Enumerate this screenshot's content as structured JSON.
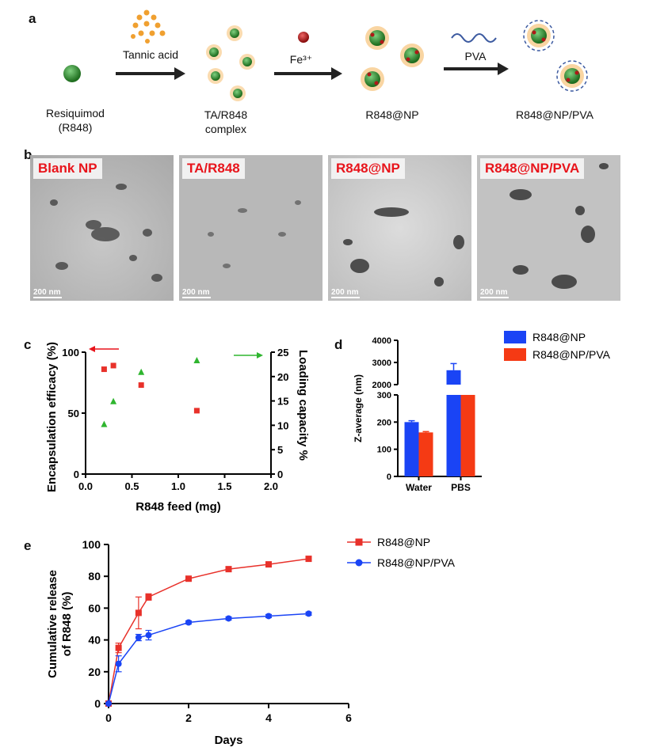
{
  "panel_labels": {
    "a": "a",
    "b": "b",
    "c": "c",
    "d": "d",
    "e": "e"
  },
  "scheme": {
    "step1": "Resiquimod\n(R848)",
    "arrow1": "Tannic acid",
    "step2": "TA/R848\ncomplex",
    "arrow2": "Fe³⁺",
    "step3": "R848@NP",
    "arrow3": "PVA",
    "step4": "R848@NP/PVA",
    "colors": {
      "drug": "#2f8a2f",
      "tannic": "#f0a030",
      "iron": "#b01818",
      "pva": "#3c5aa0"
    }
  },
  "tem": {
    "scale_bar": "200 nm",
    "images": [
      {
        "label": "Blank NP"
      },
      {
        "label": "TA/R848"
      },
      {
        "label": "R848@NP"
      },
      {
        "label": "R848@NP/PVA"
      }
    ],
    "label_color": "#e8141b"
  },
  "chart_data": [
    {
      "id": "c",
      "type": "scatter",
      "xlabel": "R848 feed (mg)",
      "ylabel": "Encapsulation efficacy (%)",
      "y2label": "Loading capacity %",
      "xlim": [
        0,
        2.0
      ],
      "ylim": [
        0,
        100
      ],
      "y2lim": [
        0,
        25
      ],
      "xticks": [
        "0.0",
        "0.5",
        "1.0",
        "1.5",
        "2.0"
      ],
      "yticks": [
        "0",
        "50",
        "100"
      ],
      "y2ticks": [
        "0",
        "5",
        "10",
        "15",
        "20",
        "25"
      ],
      "series": [
        {
          "axis": "left",
          "color": "#e8312a",
          "marker": "square",
          "points": [
            [
              0.2,
              86
            ],
            [
              0.3,
              89
            ],
            [
              0.6,
              73
            ],
            [
              1.2,
              52
            ]
          ]
        },
        {
          "axis": "right",
          "color": "#2fb52f",
          "marker": "triangle",
          "points": [
            [
              0.2,
              10.2
            ],
            [
              0.3,
              14.9
            ],
            [
              0.6,
              20.9
            ],
            [
              1.2,
              23.3
            ]
          ]
        }
      ],
      "indicators": [
        {
          "direction": "left",
          "color": "#e8141b"
        },
        {
          "direction": "right",
          "color": "#2fb52f"
        }
      ]
    },
    {
      "id": "d",
      "type": "bar",
      "ylabel": "Z-average (nm)",
      "categories": [
        "Water",
        "PBS"
      ],
      "broken_axis": {
        "lower": [
          0,
          300
        ],
        "upper": [
          2000,
          4000
        ]
      },
      "yticks_lower": [
        "0",
        "100",
        "200",
        "300"
      ],
      "yticks_upper": [
        "2000",
        "3000",
        "4000"
      ],
      "series": [
        {
          "name": "R848@NP",
          "color": "#1a44f5",
          "values": [
            200,
            2650
          ],
          "errors": [
            5,
            300
          ]
        },
        {
          "name": "R848@NP/PVA",
          "color": "#f53a14",
          "values": [
            162,
            300
          ],
          "errors": [
            3,
            0
          ]
        }
      ]
    },
    {
      "id": "e",
      "type": "line",
      "xlabel": "Days",
      "ylabel": "Cumulative release\nof R848 (%)",
      "xlim": [
        0,
        6
      ],
      "ylim": [
        0,
        100
      ],
      "xticks": [
        "0",
        "2",
        "4",
        "6"
      ],
      "yticks": [
        "0",
        "20",
        "40",
        "60",
        "80",
        "100"
      ],
      "series": [
        {
          "name": "R848@NP",
          "color": "#e8312a",
          "marker": "square",
          "x": [
            0,
            0.25,
            0.75,
            1,
            2,
            3,
            4,
            5
          ],
          "y": [
            0,
            35,
            57,
            67,
            78.5,
            84.5,
            87.5,
            91
          ],
          "err": [
            0,
            3,
            10,
            2,
            1,
            1,
            1,
            1
          ]
        },
        {
          "name": "R848@NP/PVA",
          "color": "#1a44f5",
          "marker": "circle",
          "x": [
            0,
            0.25,
            0.75,
            1,
            2,
            3,
            4,
            5
          ],
          "y": [
            0,
            25,
            41.5,
            43,
            51,
            53.5,
            55,
            56.5
          ],
          "err": [
            0,
            5,
            2,
            3,
            1,
            1,
            1,
            1
          ]
        }
      ]
    }
  ]
}
